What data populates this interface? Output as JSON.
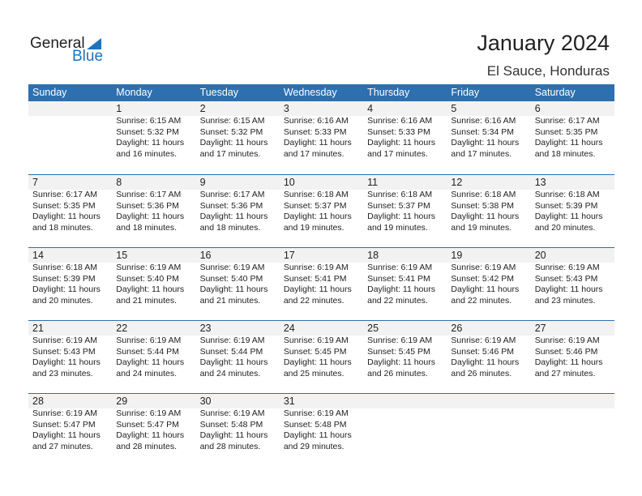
{
  "logo": {
    "line1": "General",
    "line2": "Blue"
  },
  "title": "January 2024",
  "location": "El Sauce, Honduras",
  "colors": {
    "accent": "#2e6fb0",
    "band": "#f2f2f2"
  },
  "weekdays": [
    "Sunday",
    "Monday",
    "Tuesday",
    "Wednesday",
    "Thursday",
    "Friday",
    "Saturday"
  ],
  "weeks": [
    [
      null,
      {
        "day": "1",
        "sunrise": "Sunrise: 6:15 AM",
        "sunset": "Sunset: 5:32 PM",
        "daylight1": "Daylight: 11 hours",
        "daylight2": "and 16 minutes."
      },
      {
        "day": "2",
        "sunrise": "Sunrise: 6:15 AM",
        "sunset": "Sunset: 5:32 PM",
        "daylight1": "Daylight: 11 hours",
        "daylight2": "and 17 minutes."
      },
      {
        "day": "3",
        "sunrise": "Sunrise: 6:16 AM",
        "sunset": "Sunset: 5:33 PM",
        "daylight1": "Daylight: 11 hours",
        "daylight2": "and 17 minutes."
      },
      {
        "day": "4",
        "sunrise": "Sunrise: 6:16 AM",
        "sunset": "Sunset: 5:33 PM",
        "daylight1": "Daylight: 11 hours",
        "daylight2": "and 17 minutes."
      },
      {
        "day": "5",
        "sunrise": "Sunrise: 6:16 AM",
        "sunset": "Sunset: 5:34 PM",
        "daylight1": "Daylight: 11 hours",
        "daylight2": "and 17 minutes."
      },
      {
        "day": "6",
        "sunrise": "Sunrise: 6:17 AM",
        "sunset": "Sunset: 5:35 PM",
        "daylight1": "Daylight: 11 hours",
        "daylight2": "and 18 minutes."
      }
    ],
    [
      {
        "day": "7",
        "sunrise": "Sunrise: 6:17 AM",
        "sunset": "Sunset: 5:35 PM",
        "daylight1": "Daylight: 11 hours",
        "daylight2": "and 18 minutes."
      },
      {
        "day": "8",
        "sunrise": "Sunrise: 6:17 AM",
        "sunset": "Sunset: 5:36 PM",
        "daylight1": "Daylight: 11 hours",
        "daylight2": "and 18 minutes."
      },
      {
        "day": "9",
        "sunrise": "Sunrise: 6:17 AM",
        "sunset": "Sunset: 5:36 PM",
        "daylight1": "Daylight: 11 hours",
        "daylight2": "and 18 minutes."
      },
      {
        "day": "10",
        "sunrise": "Sunrise: 6:18 AM",
        "sunset": "Sunset: 5:37 PM",
        "daylight1": "Daylight: 11 hours",
        "daylight2": "and 19 minutes."
      },
      {
        "day": "11",
        "sunrise": "Sunrise: 6:18 AM",
        "sunset": "Sunset: 5:37 PM",
        "daylight1": "Daylight: 11 hours",
        "daylight2": "and 19 minutes."
      },
      {
        "day": "12",
        "sunrise": "Sunrise: 6:18 AM",
        "sunset": "Sunset: 5:38 PM",
        "daylight1": "Daylight: 11 hours",
        "daylight2": "and 19 minutes."
      },
      {
        "day": "13",
        "sunrise": "Sunrise: 6:18 AM",
        "sunset": "Sunset: 5:39 PM",
        "daylight1": "Daylight: 11 hours",
        "daylight2": "and 20 minutes."
      }
    ],
    [
      {
        "day": "14",
        "sunrise": "Sunrise: 6:18 AM",
        "sunset": "Sunset: 5:39 PM",
        "daylight1": "Daylight: 11 hours",
        "daylight2": "and 20 minutes."
      },
      {
        "day": "15",
        "sunrise": "Sunrise: 6:19 AM",
        "sunset": "Sunset: 5:40 PM",
        "daylight1": "Daylight: 11 hours",
        "daylight2": "and 21 minutes."
      },
      {
        "day": "16",
        "sunrise": "Sunrise: 6:19 AM",
        "sunset": "Sunset: 5:40 PM",
        "daylight1": "Daylight: 11 hours",
        "daylight2": "and 21 minutes."
      },
      {
        "day": "17",
        "sunrise": "Sunrise: 6:19 AM",
        "sunset": "Sunset: 5:41 PM",
        "daylight1": "Daylight: 11 hours",
        "daylight2": "and 22 minutes."
      },
      {
        "day": "18",
        "sunrise": "Sunrise: 6:19 AM",
        "sunset": "Sunset: 5:41 PM",
        "daylight1": "Daylight: 11 hours",
        "daylight2": "and 22 minutes."
      },
      {
        "day": "19",
        "sunrise": "Sunrise: 6:19 AM",
        "sunset": "Sunset: 5:42 PM",
        "daylight1": "Daylight: 11 hours",
        "daylight2": "and 22 minutes."
      },
      {
        "day": "20",
        "sunrise": "Sunrise: 6:19 AM",
        "sunset": "Sunset: 5:43 PM",
        "daylight1": "Daylight: 11 hours",
        "daylight2": "and 23 minutes."
      }
    ],
    [
      {
        "day": "21",
        "sunrise": "Sunrise: 6:19 AM",
        "sunset": "Sunset: 5:43 PM",
        "daylight1": "Daylight: 11 hours",
        "daylight2": "and 23 minutes."
      },
      {
        "day": "22",
        "sunrise": "Sunrise: 6:19 AM",
        "sunset": "Sunset: 5:44 PM",
        "daylight1": "Daylight: 11 hours",
        "daylight2": "and 24 minutes."
      },
      {
        "day": "23",
        "sunrise": "Sunrise: 6:19 AM",
        "sunset": "Sunset: 5:44 PM",
        "daylight1": "Daylight: 11 hours",
        "daylight2": "and 24 minutes."
      },
      {
        "day": "24",
        "sunrise": "Sunrise: 6:19 AM",
        "sunset": "Sunset: 5:45 PM",
        "daylight1": "Daylight: 11 hours",
        "daylight2": "and 25 minutes."
      },
      {
        "day": "25",
        "sunrise": "Sunrise: 6:19 AM",
        "sunset": "Sunset: 5:45 PM",
        "daylight1": "Daylight: 11 hours",
        "daylight2": "and 26 minutes."
      },
      {
        "day": "26",
        "sunrise": "Sunrise: 6:19 AM",
        "sunset": "Sunset: 5:46 PM",
        "daylight1": "Daylight: 11 hours",
        "daylight2": "and 26 minutes."
      },
      {
        "day": "27",
        "sunrise": "Sunrise: 6:19 AM",
        "sunset": "Sunset: 5:46 PM",
        "daylight1": "Daylight: 11 hours",
        "daylight2": "and 27 minutes."
      }
    ],
    [
      {
        "day": "28",
        "sunrise": "Sunrise: 6:19 AM",
        "sunset": "Sunset: 5:47 PM",
        "daylight1": "Daylight: 11 hours",
        "daylight2": "and 27 minutes."
      },
      {
        "day": "29",
        "sunrise": "Sunrise: 6:19 AM",
        "sunset": "Sunset: 5:47 PM",
        "daylight1": "Daylight: 11 hours",
        "daylight2": "and 28 minutes."
      },
      {
        "day": "30",
        "sunrise": "Sunrise: 6:19 AM",
        "sunset": "Sunset: 5:48 PM",
        "daylight1": "Daylight: 11 hours",
        "daylight2": "and 28 minutes."
      },
      {
        "day": "31",
        "sunrise": "Sunrise: 6:19 AM",
        "sunset": "Sunset: 5:48 PM",
        "daylight1": "Daylight: 11 hours",
        "daylight2": "and 29 minutes."
      },
      null,
      null,
      null
    ]
  ]
}
